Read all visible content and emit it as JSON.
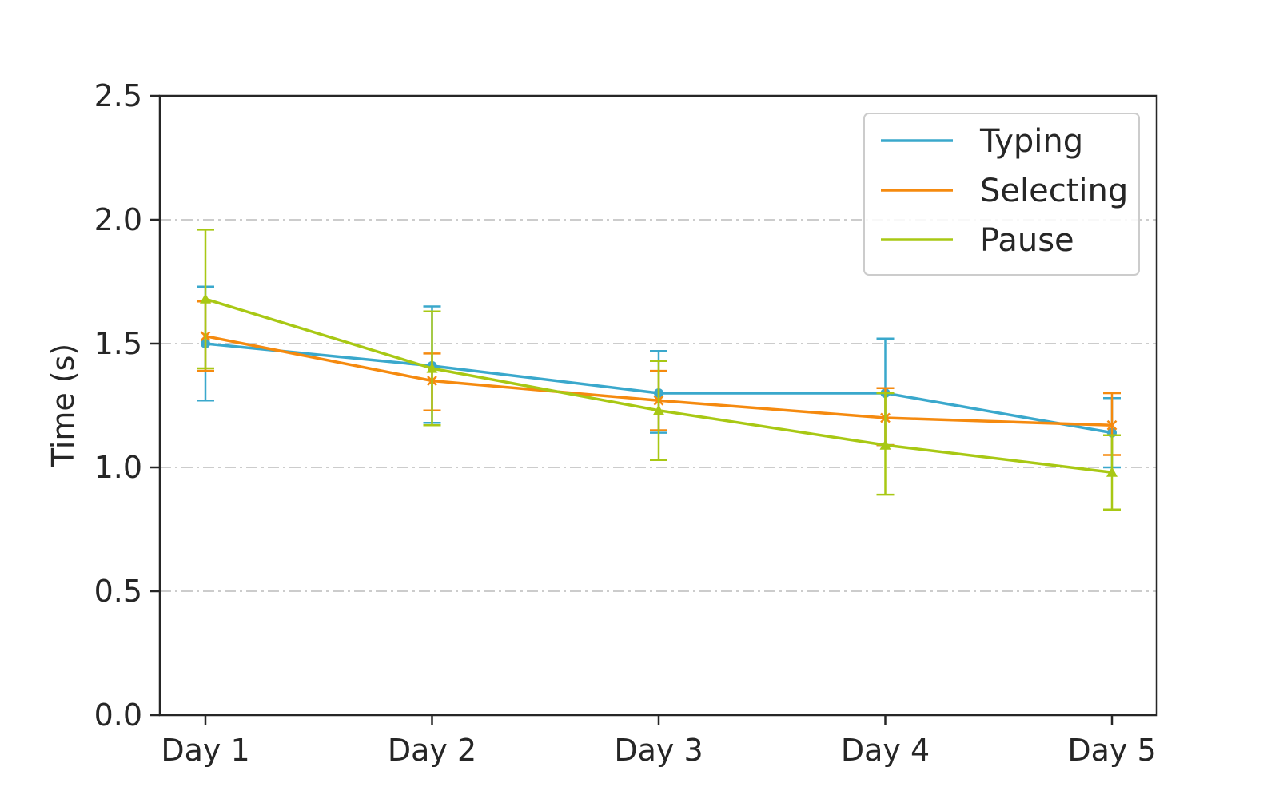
{
  "chart_data": {
    "type": "line",
    "title": "",
    "xlabel": "",
    "ylabel": "Time (s)",
    "categories": [
      "Day 1",
      "Day 2",
      "Day 3",
      "Day 4",
      "Day 5"
    ],
    "ylim": [
      0,
      2.5
    ],
    "yticks": [
      "0.0",
      "0.5",
      "1.0",
      "1.5",
      "2.0",
      "2.5"
    ],
    "grid": {
      "y": true,
      "style": "dash-dot",
      "color": "#cccccc"
    },
    "legend_position": "top-right",
    "series": [
      {
        "name": "Typing",
        "color": "#3aa8cc",
        "marker": "circle",
        "values": [
          1.5,
          1.41,
          1.3,
          1.3,
          1.14
        ],
        "err_low": [
          1.27,
          1.18,
          1.14,
          1.09,
          1.0
        ],
        "err_high": [
          1.73,
          1.65,
          1.47,
          1.52,
          1.28
        ]
      },
      {
        "name": "Selecting",
        "color": "#f58a0f",
        "marker": "x",
        "values": [
          1.53,
          1.35,
          1.27,
          1.2,
          1.17
        ],
        "err_low": [
          1.39,
          1.23,
          1.15,
          1.09,
          1.05
        ],
        "err_high": [
          1.67,
          1.46,
          1.39,
          1.32,
          1.3
        ]
      },
      {
        "name": "Pause",
        "color": "#a8c814",
        "marker": "triangle",
        "values": [
          1.68,
          1.4,
          1.23,
          1.09,
          0.98
        ],
        "err_low": [
          1.4,
          1.17,
          1.03,
          0.89,
          0.83
        ],
        "err_high": [
          1.96,
          1.63,
          1.43,
          1.3,
          1.13
        ]
      }
    ]
  }
}
